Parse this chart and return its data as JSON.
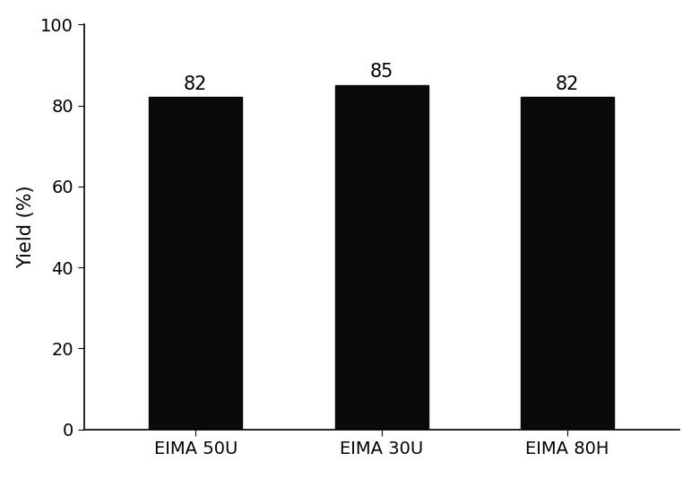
{
  "categories": [
    "EIMA 50U",
    "EIMA 30U",
    "EIMA 80H"
  ],
  "values": [
    82,
    85,
    82
  ],
  "bar_color": "#0a0a0a",
  "ylabel": "Yield (%)",
  "ylim": [
    0,
    100
  ],
  "yticks": [
    0,
    20,
    40,
    60,
    80,
    100
  ],
  "annotation_fontsize": 15,
  "ylabel_fontsize": 15,
  "tick_fontsize": 14,
  "xlabel_fontsize": 14,
  "background_color": "#ffffff",
  "bar_width": 0.5
}
